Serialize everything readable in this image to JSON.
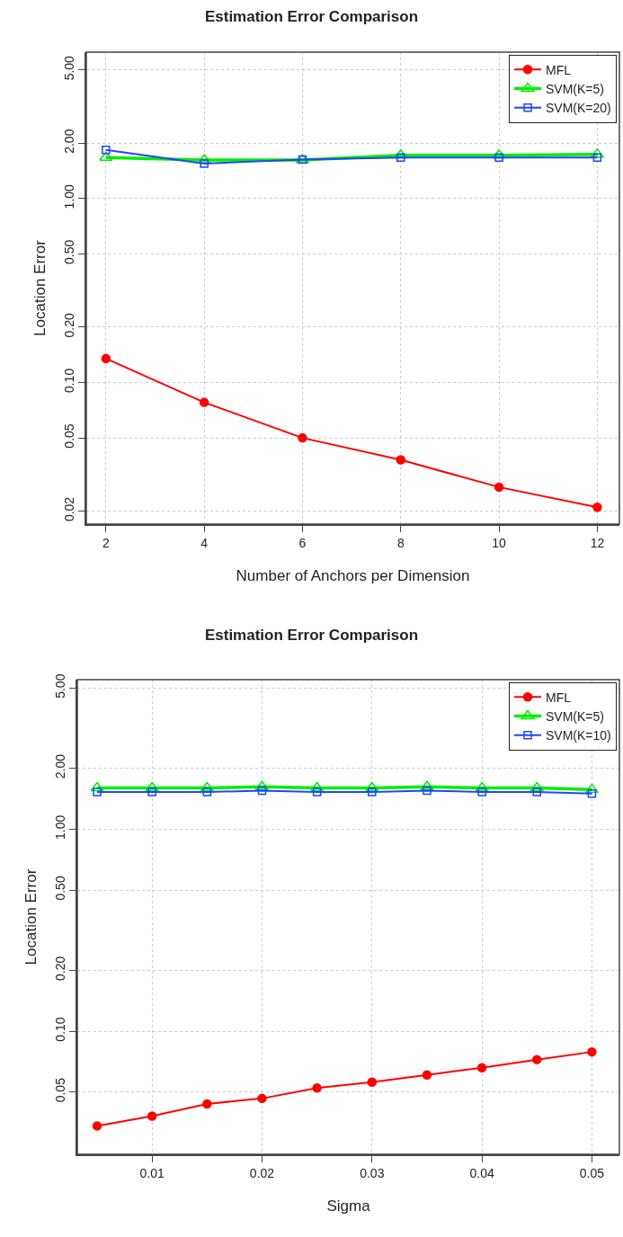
{
  "chart_data": [
    {
      "type": "line",
      "title": "Estimation Error Comparison",
      "xlabel": "Number of Anchors per Dimension",
      "ylabel": "Location Error",
      "log": "y",
      "grid": true,
      "legend": "top right",
      "line_style": "solid",
      "x": [
        2,
        4,
        6,
        8,
        10,
        12
      ],
      "xlim": [
        1.6,
        12.45
      ],
      "xticks": [
        2,
        4,
        6,
        8,
        10,
        12
      ],
      "ylim": [
        0.017,
        6.25
      ],
      "yticks": [
        {
          "value": 0.02,
          "label": "0.02"
        },
        {
          "value": 0.05,
          "label": "0.05"
        },
        {
          "value": 0.1,
          "label": "0.10"
        },
        {
          "value": 0.2,
          "label": "0.20"
        },
        {
          "value": 0.5,
          "label": "0.50"
        },
        {
          "value": 1,
          "label": "1.00"
        },
        {
          "value": 2,
          "label": "2.00"
        },
        {
          "value": 5,
          "label": "5.00"
        }
      ],
      "series": [
        {
          "name": "MFL",
          "color": "#ff0000",
          "marker": "circle",
          "values": [
            0.135,
            0.078,
            0.05,
            0.038,
            0.027,
            0.021
          ]
        },
        {
          "name": "SVM(K=5)",
          "color": "#00ee00",
          "marker": "triangle",
          "values": [
            1.67,
            1.62,
            1.62,
            1.72,
            1.72,
            1.74
          ]
        },
        {
          "name": "SVM(K=20)",
          "color": "#2244ff",
          "marker": "square",
          "values": [
            1.84,
            1.55,
            1.63,
            1.67,
            1.67,
            1.67
          ]
        }
      ]
    },
    {
      "type": "line",
      "title": "Estimation Error Comparison",
      "xlabel": "Sigma",
      "ylabel": "Location Error",
      "log": "y",
      "grid": true,
      "legend": "top right",
      "line_style": "solid",
      "x": [
        0.005,
        0.01,
        0.015,
        0.02,
        0.025,
        0.03,
        0.035,
        0.04,
        0.045,
        0.05
      ],
      "xlim": [
        0.0032,
        0.0525
      ],
      "xticks": [
        0.01,
        0.02,
        0.03,
        0.04,
        0.05
      ],
      "ylim": [
        0.0246,
        5.5
      ],
      "yticks": [
        {
          "value": 0.05,
          "label": "0.05"
        },
        {
          "value": 0.1,
          "label": "0.10"
        },
        {
          "value": 0.2,
          "label": "0.20"
        },
        {
          "value": 0.5,
          "label": "0.50"
        },
        {
          "value": 1,
          "label": "1.00"
        },
        {
          "value": 2,
          "label": "2.00"
        },
        {
          "value": 5,
          "label": "5.00"
        }
      ],
      "series": [
        {
          "name": "MFL",
          "color": "#ff0000",
          "marker": "circle",
          "values": [
            0.034,
            0.038,
            0.0437,
            0.0465,
            0.0524,
            0.056,
            0.0608,
            0.066,
            0.0724,
            0.079
          ]
        },
        {
          "name": "SVM(K=5)",
          "color": "#00ee00",
          "marker": "triangle",
          "values": [
            1.6,
            1.6,
            1.6,
            1.62,
            1.6,
            1.6,
            1.62,
            1.6,
            1.6,
            1.57
          ]
        },
        {
          "name": "SVM(K=10)",
          "color": "#2244ff",
          "marker": "square",
          "values": [
            1.53,
            1.53,
            1.53,
            1.55,
            1.53,
            1.53,
            1.55,
            1.53,
            1.53,
            1.5
          ]
        }
      ]
    }
  ]
}
